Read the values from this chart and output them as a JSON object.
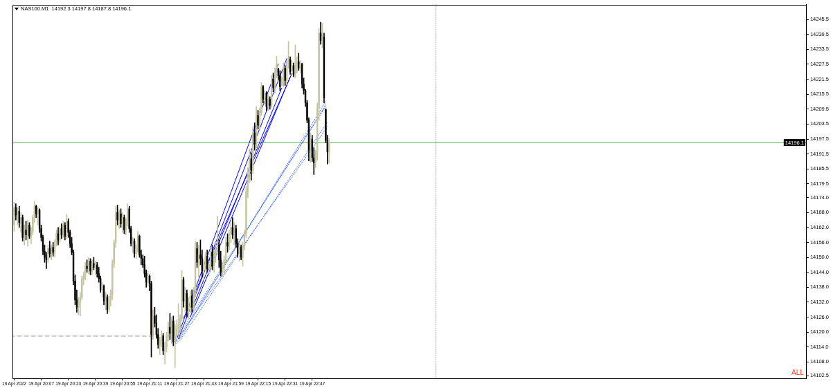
{
  "chart_data": {
    "type": "candlestick",
    "title": "NAS100.M1  14192.3 14197.8 14187.8 14196.1",
    "colors": [
      "#c4c4a0",
      "#000000",
      "#c4c4a0",
      "#000000",
      "#c4c4a0",
      "#000000",
      "#c4c4a0",
      "#000000",
      "#c4c4a0",
      "#000000",
      "#c4c4a0",
      "#c4c4a0",
      "#c4c4a0",
      "#000000",
      "#c4c4a0",
      "#000000",
      "#000000",
      "#000000",
      "#000000",
      "#000000",
      "#c4c4a0",
      "#000000",
      "#c4c4a0",
      "#000000",
      "#c4c4a0",
      "#c4c4a0",
      "#000000",
      "#c4c4a0",
      "#000000",
      "#c4c4a0",
      "#000000",
      "#c4c4a0",
      "#000000",
      "#000000",
      "#000000",
      "#000000",
      "#000000",
      "#000000",
      "#c4c4a0",
      "#c4c4a0",
      "#c4c4a0",
      "#c4c4a0",
      "#c4c4a0",
      "#000000",
      "#c4c4a0",
      "#000000",
      "#c4c4a0",
      "#000000",
      "#c4c4a0",
      "#000000",
      "#000000",
      "#000000",
      "#c4c4a0",
      "#000000",
      "#c4c4a0",
      "#000000",
      "#c4c4a0",
      "#c4c4a0",
      "#c4c4a0",
      "#c4c4a0",
      "#c4c4a0",
      "#000000",
      "#c4c4a0",
      "#000000",
      "#c4c4a0",
      "#000000",
      "#c4c4a0",
      "#c4c4a0",
      "#000000",
      "#000000",
      "#c4c4a0",
      "#000000",
      "#c4c4a0",
      "#c4c4a0",
      "#000000",
      "#000000",
      "#000000",
      "#000000",
      "#000000",
      "#c4c4a0",
      "#000000",
      "#000000",
      "#c4c4a0",
      "#000000",
      "#000000",
      "#000000",
      "#c4c4a0",
      "#c4c4a0",
      "#000000",
      "#c4c4a0",
      "#c4c4a0",
      "#c4c4a0",
      "#000000",
      "#c4c4a0",
      "#000000",
      "#c4c4a0",
      "#c4c4a0",
      "#c4c4a0",
      "#c4c4a0",
      "#c4c4a0",
      "#000000",
      "#c4c4a0",
      "#000000",
      "#c4c4a0",
      "#c4c4a0",
      "#000000",
      "#c4c4a0",
      "#c4c4a0",
      "#000000",
      "#c4c4a0",
      "#000000",
      "#000000",
      "#c4c4a0",
      "#c4c4a0",
      "#000000",
      "#c4c4a0",
      "#c4c4a0",
      "#000000",
      "#c4c4a0",
      "#c4c4a0",
      "#c4c4a0",
      "#000000",
      "#000000",
      "#c4c4a0",
      "#c4c4a0",
      "#c4c4a0",
      "#000000",
      "#c4c4a0",
      "#c4c4a0",
      "#000000",
      "#c4c4a0",
      "#000000",
      "#000000",
      "#c4c4a0",
      "#000000",
      "#c4c4a0",
      "#c4c4a0",
      "#c4c4a0",
      "#c4c4a0",
      "#c4c4a0",
      "#000000",
      "#c4c4a0",
      "#000000",
      "#c4c4a0",
      "#000000",
      "#c4c4a0",
      "#c4c4a0",
      "#000000",
      "#c4c4a0",
      "#000000",
      "#c4c4a0",
      "#000000",
      "#c4c4a0",
      "#000000",
      "#c4c4a0",
      "#c4c4a0",
      "#000000",
      "#000000",
      "#c4c4a0",
      "#c4c4a0",
      "#000000",
      "#c4c4a0",
      "#c4c4a0",
      "#000000",
      "#c4c4a0",
      "#000000",
      "#c4c4a0",
      "#c4c4a0",
      "#000000",
      "#c4c4a0",
      "#000000",
      "#000000",
      "#000000",
      "#000000",
      "#000000",
      "#c4c4a0",
      "#000000",
      "#000000",
      "#c4c4a0",
      "#c4c4a0",
      "#c4c4a0",
      "#000000",
      "#c4c4a0",
      "#000000",
      "#000000",
      "#000000",
      "#c4c4a0"
    ],
    "x": [
      "2022-04-19T19:51",
      "2022-04-19T19:52",
      "2022-04-19T19:53",
      "2022-04-19T19:54",
      "2022-04-19T19:55",
      "2022-04-19T19:56",
      "2022-04-19T19:57",
      "2022-04-19T19:58",
      "2022-04-19T19:59",
      "2022-04-19T20:00",
      "2022-04-19T20:01",
      "2022-04-19T20:02",
      "2022-04-19T20:03",
      "2022-04-19T20:04",
      "2022-04-19T20:05",
      "2022-04-19T20:06",
      "2022-04-19T20:07",
      "2022-04-19T20:08",
      "2022-04-19T20:09",
      "2022-04-19T20:10",
      "2022-04-19T20:11",
      "2022-04-19T20:12",
      "2022-04-19T20:13",
      "2022-04-19T20:14",
      "2022-04-19T20:15",
      "2022-04-19T20:16",
      "2022-04-19T20:17",
      "2022-04-19T20:18",
      "2022-04-19T20:19",
      "2022-04-19T20:20",
      "2022-04-19T20:21",
      "2022-04-19T20:22",
      "2022-04-19T20:23",
      "2022-04-19T20:24",
      "2022-04-19T20:25",
      "2022-04-19T20:26",
      "2022-04-19T20:27",
      "2022-04-19T20:28",
      "2022-04-19T20:29",
      "2022-04-19T20:30",
      "2022-04-19T20:31",
      "2022-04-19T20:32",
      "2022-04-19T20:33",
      "2022-04-19T20:34",
      "2022-04-19T20:35",
      "2022-04-19T20:36",
      "2022-04-19T20:37",
      "2022-04-19T20:38",
      "2022-04-19T20:39",
      "2022-04-19T20:40",
      "2022-04-19T20:41",
      "2022-04-19T20:42",
      "2022-04-19T20:43",
      "2022-04-19T20:44",
      "2022-04-19T20:45",
      "2022-04-19T20:46",
      "2022-04-19T20:47",
      "2022-04-19T20:48",
      "2022-04-19T20:49",
      "2022-04-19T20:50",
      "2022-04-19T20:51",
      "2022-04-19T20:52",
      "2022-04-19T20:53",
      "2022-04-19T20:54",
      "2022-04-19T20:55",
      "2022-04-19T20:56",
      "2022-04-19T20:57",
      "2022-04-19T20:58",
      "2022-04-19T20:59",
      "2022-04-19T21:00",
      "2022-04-19T21:01",
      "2022-04-19T21:02",
      "2022-04-19T21:03",
      "2022-04-19T21:04",
      "2022-04-19T21:05",
      "2022-04-19T21:06",
      "2022-04-19T21:07",
      "2022-04-19T21:08",
      "2022-04-19T21:09",
      "2022-04-19T21:10",
      "2022-04-19T21:11",
      "2022-04-19T21:12",
      "2022-04-19T21:13",
      "2022-04-19T21:14",
      "2022-04-19T21:15",
      "2022-04-19T21:16",
      "2022-04-19T21:17",
      "2022-04-19T21:18",
      "2022-04-19T21:19",
      "2022-04-19T21:20",
      "2022-04-19T21:21",
      "2022-04-19T21:22",
      "2022-04-19T21:23",
      "2022-04-19T21:24",
      "2022-04-19T21:25",
      "2022-04-19T21:26",
      "2022-04-19T21:27",
      "2022-04-19T21:28",
      "2022-04-19T21:29",
      "2022-04-19T21:30",
      "2022-04-19T21:31",
      "2022-04-19T21:32",
      "2022-04-19T21:33",
      "2022-04-19T21:34",
      "2022-04-19T21:35",
      "2022-04-19T21:36",
      "2022-04-19T21:37",
      "2022-04-19T21:38",
      "2022-04-19T21:39",
      "2022-04-19T21:40",
      "2022-04-19T21:41",
      "2022-04-19T21:42",
      "2022-04-19T21:43",
      "2022-04-19T21:44",
      "2022-04-19T21:45",
      "2022-04-19T21:46",
      "2022-04-19T21:47",
      "2022-04-19T21:48",
      "2022-04-19T21:49",
      "2022-04-19T21:50",
      "2022-04-19T21:51",
      "2022-04-19T21:52",
      "2022-04-19T21:53",
      "2022-04-19T21:54",
      "2022-04-19T21:55",
      "2022-04-19T21:56",
      "2022-04-19T21:57",
      "2022-04-19T21:58",
      "2022-04-19T21:59",
      "2022-04-19T22:00",
      "2022-04-19T22:01",
      "2022-04-19T22:02",
      "2022-04-19T22:03",
      "2022-04-19T22:04",
      "2022-04-19T22:05",
      "2022-04-19T22:06",
      "2022-04-19T22:07",
      "2022-04-19T22:08",
      "2022-04-19T22:09",
      "2022-04-19T22:10",
      "2022-04-19T22:11",
      "2022-04-19T22:12",
      "2022-04-19T22:13",
      "2022-04-19T22:14",
      "2022-04-19T22:15",
      "2022-04-19T22:16",
      "2022-04-19T22:17",
      "2022-04-19T22:18",
      "2022-04-19T22:19",
      "2022-04-19T22:20",
      "2022-04-19T22:21",
      "2022-04-19T22:22",
      "2022-04-19T22:23",
      "2022-04-19T22:24",
      "2022-04-19T22:25",
      "2022-04-19T22:26",
      "2022-04-19T22:27",
      "2022-04-19T22:28",
      "2022-04-19T22:29",
      "2022-04-19T22:30",
      "2022-04-19T22:31",
      "2022-04-19T22:32",
      "2022-04-19T22:33",
      "2022-04-19T22:34",
      "2022-04-19T22:35",
      "2022-04-19T22:36",
      "2022-04-19T22:37",
      "2022-04-19T22:38",
      "2022-04-19T22:39",
      "2022-04-19T22:40",
      "2022-04-19T22:41",
      "2022-04-19T22:42",
      "2022-04-19T22:43",
      "2022-04-19T22:44",
      "2022-04-19T22:45",
      "2022-04-19T22:46",
      "2022-04-19T22:47",
      "2022-04-19T22:48",
      "2022-04-19T22:49",
      "2022-04-19T22:50",
      "2022-04-19T22:51",
      "2022-04-19T22:52",
      "2022-04-19T22:53",
      "2022-04-19T22:54",
      "2022-04-19T22:55",
      "2022-04-19T22:56",
      "2022-04-19T22:57"
    ],
    "ohlc": [
      [
        14163,
        14172.2,
        14160.5,
        14170
      ],
      [
        14170,
        14171.5,
        14165,
        14167
      ],
      [
        14167,
        14170,
        14163,
        14168.5
      ],
      [
        14168.5,
        14170.5,
        14162,
        14164
      ],
      [
        14164,
        14168,
        14160,
        14166
      ],
      [
        14166,
        14167,
        14156.5,
        14158
      ],
      [
        14158,
        14163,
        14155,
        14161
      ],
      [
        14161,
        14164.5,
        14157,
        14159
      ],
      [
        14159,
        14165,
        14154.5,
        14163
      ],
      [
        14163,
        14164,
        14157.5,
        14158.5
      ],
      [
        14158.5,
        14162,
        14155.5,
        14160.5
      ],
      [
        14160.5,
        14167,
        14159,
        14166
      ],
      [
        14166,
        14172.5,
        14164,
        14170.5
      ],
      [
        14170.5,
        14171,
        14166,
        14167.5
      ],
      [
        14167.5,
        14170,
        14163,
        14169
      ],
      [
        14169,
        14169.5,
        14160,
        14161.5
      ],
      [
        14161.5,
        14163,
        14156.5,
        14158
      ],
      [
        14158,
        14159,
        14151,
        14152.5
      ],
      [
        14152.5,
        14155,
        14148,
        14150
      ],
      [
        14150,
        14152,
        14145.5,
        14149
      ],
      [
        14149,
        14155,
        14148,
        14153.5
      ],
      [
        14153.5,
        14156.5,
        14150,
        14151.5
      ],
      [
        14151.5,
        14155,
        14149,
        14154
      ],
      [
        14154,
        14156,
        14150.5,
        14152
      ],
      [
        14152,
        14157,
        14150,
        14156
      ],
      [
        14156,
        14161,
        14154.5,
        14159.5
      ],
      [
        14159.5,
        14162,
        14155,
        14157
      ],
      [
        14157,
        14162.5,
        14156,
        14161.5
      ],
      [
        14161.5,
        14163.5,
        14157.5,
        14159
      ],
      [
        14159,
        14164.5,
        14158,
        14163
      ],
      [
        14163,
        14164,
        14157,
        14158.5
      ],
      [
        14158.5,
        14167.3,
        14157.5,
        14164.5
      ],
      [
        14164.5,
        14165.5,
        14158,
        14160
      ],
      [
        14160,
        14161,
        14154,
        14155.5
      ],
      [
        14155.5,
        14158,
        14151,
        14152
      ],
      [
        14152,
        14153,
        14139,
        14140.5
      ],
      [
        14140.5,
        14143,
        14131,
        14133
      ],
      [
        14133,
        14137,
        14128,
        14130
      ],
      [
        14130,
        14134,
        14127,
        14132
      ],
      [
        14132,
        14136,
        14126.5,
        14134
      ],
      [
        14134,
        14142.5,
        14133,
        14141.5
      ],
      [
        14141.5,
        14144,
        14139,
        14142.5
      ],
      [
        14142.5,
        14148,
        14141,
        14146.5
      ],
      [
        14146.5,
        14149,
        14144,
        14145.5
      ],
      [
        14145.5,
        14150,
        14143.5,
        14148.5
      ],
      [
        14148.5,
        14149.5,
        14143,
        14144.5
      ],
      [
        14144.5,
        14149,
        14143,
        14147.5
      ],
      [
        14147.5,
        14150,
        14145,
        14146
      ],
      [
        14146,
        14148.5,
        14143,
        14147
      ],
      [
        14147,
        14148,
        14142,
        14143.5
      ],
      [
        14143.5,
        14146,
        14140,
        14141.5
      ],
      [
        14141.5,
        14142.5,
        14136,
        14137
      ],
      [
        14137,
        14140,
        14134,
        14138.5
      ],
      [
        14138.5,
        14139,
        14131,
        14132.5
      ],
      [
        14132.5,
        14136,
        14129,
        14134
      ],
      [
        14134,
        14135,
        14127.4,
        14129
      ],
      [
        14129,
        14134.5,
        14128,
        14133
      ],
      [
        14133,
        14137,
        14130.5,
        14135.5
      ],
      [
        14135.5,
        14149,
        14133,
        14147.5
      ],
      [
        14147.5,
        14157,
        14146,
        14156
      ],
      [
        14156,
        14170.5,
        14154,
        14168
      ],
      [
        14168,
        14171,
        14163,
        14165
      ],
      [
        14165,
        14169,
        14161.5,
        14167.5
      ],
      [
        14167.5,
        14169.5,
        14162,
        14163.5
      ],
      [
        14163.5,
        14168,
        14160,
        14166
      ],
      [
        14166,
        14167,
        14159.5,
        14161
      ],
      [
        14161,
        14165.5,
        14159,
        14164.5
      ],
      [
        14164.5,
        14171.5,
        14162.5,
        14169.5
      ],
      [
        14169.5,
        14170.5,
        14160,
        14161.5
      ],
      [
        14161.5,
        14162.5,
        14154.5,
        14155.5
      ],
      [
        14155.5,
        14158,
        14152,
        14156.5
      ],
      [
        14156.5,
        14157.5,
        14150,
        14151.5
      ],
      [
        14151.5,
        14155,
        14149.5,
        14153.5
      ],
      [
        14153.5,
        14160.5,
        14152,
        14158.5
      ],
      [
        14158.5,
        14159,
        14150,
        14151
      ],
      [
        14151,
        14153,
        14147,
        14149.5
      ],
      [
        14149.5,
        14151,
        14146,
        14147
      ],
      [
        14147,
        14150.5,
        14142,
        14143.5
      ],
      [
        14143.5,
        14145,
        14138,
        14140
      ],
      [
        14140,
        14144.5,
        14138.5,
        14142.5
      ],
      [
        14142.5,
        14143,
        14136.5,
        14139.5
      ],
      [
        14139.5,
        14140.5,
        14110,
        14119
      ],
      [
        14119,
        14129,
        14117,
        14126.5
      ],
      [
        14126.5,
        14130,
        14122,
        14123.5
      ],
      [
        14123.5,
        14127,
        14117.5,
        14119
      ],
      [
        14119,
        14121.5,
        14113.5,
        14115
      ],
      [
        14115,
        14118,
        14111,
        14116.5
      ],
      [
        14116.5,
        14120.5,
        14114,
        14118.5
      ],
      [
        14118.5,
        14119.5,
        14111,
        14112.5
      ],
      [
        14112.5,
        14116,
        14107.2,
        14114
      ],
      [
        14114,
        14120,
        14112,
        14118.5
      ],
      [
        14118.5,
        14124,
        14116.5,
        14122
      ],
      [
        14122,
        14127.5,
        14117,
        14119.5
      ],
      [
        14119.5,
        14126,
        14115.5,
        14124.5
      ],
      [
        14124.5,
        14126.5,
        14114.5,
        14116
      ],
      [
        14116,
        14123,
        14105.8,
        14118.5
      ],
      [
        14118.5,
        14125,
        14116.5,
        14121.5
      ],
      [
        14121.5,
        14131.5,
        14119,
        14123
      ],
      [
        14123,
        14127,
        14120,
        14125.5
      ],
      [
        14125.5,
        14144.7,
        14124.5,
        14141
      ],
      [
        14141,
        14142,
        14130,
        14132.5
      ],
      [
        14132.5,
        14138,
        14128,
        14135.5
      ],
      [
        14135.5,
        14137,
        14126,
        14128.5
      ],
      [
        14128.5,
        14134,
        14125.5,
        14131
      ],
      [
        14131,
        14136.5,
        14127.5,
        14134.5
      ],
      [
        14134.5,
        14137,
        14128,
        14130
      ],
      [
        14130,
        14138,
        14128.5,
        14136
      ],
      [
        14136,
        14156.5,
        14134,
        14153.5
      ],
      [
        14153.5,
        14156,
        14146,
        14148
      ],
      [
        14148,
        14155,
        14142,
        14151
      ],
      [
        14151,
        14157,
        14147,
        14149.5
      ],
      [
        14149.5,
        14153,
        14142,
        14144.5
      ],
      [
        14144.5,
        14149,
        14141,
        14147.5
      ],
      [
        14147.5,
        14152,
        14145,
        14150.5
      ],
      [
        14150.5,
        14153,
        14144,
        14145.5
      ],
      [
        14145.5,
        14148.5,
        14142.5,
        14147
      ],
      [
        14147,
        14154,
        14144,
        14152
      ],
      [
        14152,
        14155,
        14145,
        14146.5
      ],
      [
        14146.5,
        14153,
        14144,
        14150.5
      ],
      [
        14150.5,
        14156,
        14148,
        14153.5
      ],
      [
        14153.5,
        14166.5,
        14151,
        14155
      ],
      [
        14155,
        14157,
        14146,
        14149
      ],
      [
        14149,
        14152.5,
        14142.5,
        14144
      ],
      [
        14144,
        14148,
        14142,
        14146
      ],
      [
        14146,
        14150.5,
        14143.5,
        14149
      ],
      [
        14149,
        14158,
        14147.5,
        14156
      ],
      [
        14156,
        14159.5,
        14152,
        14154.5
      ],
      [
        14154.5,
        14161,
        14153,
        14159.5
      ],
      [
        14159.5,
        14164.5,
        14156,
        14162
      ],
      [
        14162,
        14166,
        14157.5,
        14159
      ],
      [
        14159,
        14164,
        14155,
        14161.5
      ],
      [
        14161.5,
        14163,
        14154,
        14155.5
      ],
      [
        14155.5,
        14157.5,
        14150,
        14151.5
      ],
      [
        14151.5,
        14156,
        14148.5,
        14154
      ],
      [
        14154,
        14155,
        14149,
        14150
      ],
      [
        14150,
        14156,
        14146.5,
        14154.5
      ],
      [
        14154.5,
        14161,
        14153,
        14159.5
      ],
      [
        14159.5,
        14178.5,
        14158,
        14176.5
      ],
      [
        14176.5,
        14186,
        14174,
        14184.5
      ],
      [
        14184.5,
        14193.5,
        14180,
        14189.5
      ],
      [
        14189.5,
        14192,
        14181,
        14185
      ],
      [
        14185,
        14202.5,
        14183.5,
        14200
      ],
      [
        14200,
        14204,
        14193,
        14195.5
      ],
      [
        14195.5,
        14210.5,
        14194,
        14207
      ],
      [
        14207,
        14209,
        14201.5,
        14203
      ],
      [
        14203,
        14210,
        14201,
        14208
      ],
      [
        14208,
        14220.2,
        14207,
        14218.5
      ],
      [
        14218.5,
        14219,
        14212,
        14213.5
      ],
      [
        14213.5,
        14217,
        14211.5,
        14216
      ],
      [
        14216,
        14216.5,
        14209,
        14210.5
      ],
      [
        14210.5,
        14215.5,
        14209,
        14213.5
      ],
      [
        14213.5,
        14214.5,
        14209.5,
        14211
      ],
      [
        14211,
        14223,
        14210,
        14221.5
      ],
      [
        14221.5,
        14224,
        14216.5,
        14218
      ],
      [
        14218,
        14226,
        14216,
        14224.5
      ],
      [
        14224.5,
        14230.7,
        14222,
        14227.5
      ],
      [
        14225.5,
        14226,
        14221.5,
        14223
      ],
      [
        14223,
        14225,
        14217,
        14218.5
      ],
      [
        14219,
        14222.5,
        14219,
        14220.5
      ],
      [
        14220.5,
        14228,
        14218.5,
        14226
      ],
      [
        14226,
        14227,
        14219,
        14221
      ],
      [
        14221,
        14228.8,
        14219.5,
        14228.5
      ],
      [
        14228.5,
        14236.7,
        14226,
        14229.5
      ],
      [
        14229.5,
        14230.5,
        14223.5,
        14224.5
      ],
      [
        14225,
        14229,
        14224.8,
        14227
      ],
      [
        14227,
        14228,
        14222.5,
        14223.5
      ],
      [
        14223.5,
        14235.3,
        14222,
        14226.5
      ],
      [
        14226.5,
        14230.5,
        14224,
        14228.5
      ],
      [
        14228.5,
        14232,
        14225,
        14226
      ],
      [
        14226,
        14229,
        14224,
        14227.5
      ],
      [
        14227.5,
        14228,
        14218,
        14219.5
      ],
      [
        14219.5,
        14222,
        14215.5,
        14217
      ],
      [
        14217,
        14217.5,
        14210.5,
        14212
      ],
      [
        14212,
        14213,
        14204,
        14205
      ],
      [
        14205,
        14206,
        14188.7,
        14193
      ],
      [
        14193,
        14200,
        14188,
        14197.5
      ],
      [
        14197.5,
        14199,
        14188.5,
        14190
      ],
      [
        14190,
        14194,
        14183.2,
        14188
      ],
      [
        14188,
        14193,
        14186,
        14191.5
      ],
      [
        14191.5,
        14212,
        14189,
        14210
      ],
      [
        14210,
        14242,
        14205,
        14240
      ],
      [
        14240,
        14244.4,
        14235.5,
        14237
      ],
      [
        14237,
        14244,
        14234,
        14238.5
      ],
      [
        14238.5,
        14240,
        14212,
        14214
      ],
      [
        14209.5,
        14209.5,
        14196,
        14197
      ],
      [
        14197,
        14199,
        14187.5,
        14192.3
      ],
      [
        14192.3,
        14197.8,
        14187.8,
        14196.1
      ]
    ],
    "series": [
      {
        "type": "line",
        "color": "#0000ff",
        "line_style": "solid",
        "x": [
          "2022-04-19T21:26",
          "2022-04-19T22:27"
        ],
        "values": [
          14115.4,
          14227.6
        ]
      },
      {
        "type": "line",
        "color": "#0000ff",
        "line_style": "solid",
        "x": [
          "2022-04-19T21:28",
          "2022-04-19T22:32"
        ],
        "values": [
          14117.3,
          14229.8
        ]
      },
      {
        "type": "line",
        "color": "#0000ff",
        "line_style": "solid",
        "x": [
          "2022-04-19T21:31",
          "2022-04-19T22:35"
        ],
        "values": [
          14125.5,
          14223.8
        ]
      },
      {
        "type": "line",
        "color": "#0000ff",
        "line_style": "solid",
        "x": [
          "2022-04-19T21:35",
          "2022-04-19T22:34"
        ],
        "values": [
          14126.1,
          14222.4
        ]
      },
      {
        "type": "line",
        "color": "#0000ff",
        "line_style": "solid",
        "x": [
          "2022-04-19T21:37",
          "2022-04-19T22:29"
        ],
        "values": [
          14131,
          14218
        ]
      },
      {
        "type": "line",
        "color": "#3b6cff",
        "line_style": "dotted",
        "x": [
          "2022-04-19T21:27",
          "2022-04-19T22:55"
        ],
        "values": [
          14115.4,
          14212.5
        ]
      },
      {
        "type": "line",
        "color": "#3b6cff",
        "line_style": "dotted",
        "x": [
          "2022-04-19T21:28",
          "2022-04-19T22:55"
        ],
        "values": [
          14117.3,
          14211.2
        ]
      },
      {
        "type": "line",
        "color": "#3b6cff",
        "line_style": "dotted",
        "x": [
          "2022-04-19T21:29",
          "2022-04-19T22:56"
        ],
        "values": [
          14116.8,
          14204.3
        ]
      },
      {
        "type": "line",
        "color": "#3b6cff",
        "line_style": "dotted",
        "x": [
          "2022-04-19T21:32",
          "2022-04-19T22:55"
        ],
        "values": [
          14122.8,
          14210.6
        ]
      },
      {
        "type": "line",
        "color": "#3b6cff",
        "line_style": "dotted",
        "x": [
          "2022-04-19T21:30",
          "2022-04-19T22:56"
        ],
        "values": [
          14120,
          14202.4
        ]
      },
      {
        "type": "line",
        "color": "#9a9a88",
        "line_style": "dashed",
        "x": [
          "2022-04-19T19:50",
          "2022-04-19T21:16"
        ],
        "values": [
          14118.4,
          14118.4
        ]
      }
    ],
    "ref_lines": [
      {
        "axis": "y",
        "value": 14196.1,
        "label": "14196.1",
        "color": "#5cb85c",
        "line_style": "solid"
      },
      {
        "axis": "x",
        "value": "2022-04-20T00:00",
        "color": "#556b2f",
        "line_style": "dotted"
      }
    ],
    "annotations": [
      "ALL"
    ],
    "xlim": [
      "2022-04-19T19:50",
      "2022-04-20T03:39"
    ],
    "xticks": [
      {
        "value": "2022-04-19T19:51",
        "label": "19 Apr 2022"
      },
      {
        "value": "2022-04-19T20:07",
        "label": "19 Apr 20:07"
      },
      {
        "value": "2022-04-19T20:23",
        "label": "19 Apr 20:23"
      },
      {
        "value": "2022-04-19T20:39",
        "label": "19 Apr 20:39"
      },
      {
        "value": "2022-04-19T20:55",
        "label": "19 Apr 20:55"
      },
      {
        "value": "2022-04-19T21:11",
        "label": "19 Apr 21:11"
      },
      {
        "value": "2022-04-19T21:27",
        "label": "19 Apr 21:27"
      },
      {
        "value": "2022-04-19T21:43",
        "label": "19 Apr 21:43"
      },
      {
        "value": "2022-04-19T21:59",
        "label": "19 Apr 21:59"
      },
      {
        "value": "2022-04-19T22:15",
        "label": "19 Apr 22:15"
      },
      {
        "value": "2022-04-19T22:31",
        "label": "19 Apr 22:31"
      },
      {
        "value": "2022-04-19T22:47",
        "label": "19 Apr 22:47"
      }
    ],
    "ylim": [
      14101.4,
      14251.5
    ],
    "yticks": [
      14102.5,
      {
        "value": 14108,
        "label": "14108.0"
      },
      {
        "value": 14114,
        "label": "14114.0"
      },
      {
        "value": 14120,
        "label": "14120.0"
      },
      {
        "value": 14126,
        "label": "14126.0"
      },
      {
        "value": 14132,
        "label": "14132.0"
      },
      {
        "value": 14138,
        "label": "14138.0"
      },
      {
        "value": 14144,
        "label": "14144.0"
      },
      {
        "value": 14150,
        "label": "14150.0"
      },
      {
        "value": 14156,
        "label": "14156.0"
      },
      {
        "value": 14162,
        "label": "14162.0"
      },
      {
        "value": 14168,
        "label": "14168.0"
      },
      {
        "value": 14174,
        "label": "14174.0"
      },
      14179.5,
      14185.5,
      14191.5,
      14197.5,
      14203.5,
      14209.5,
      14215.5,
      14221.5,
      14227.5,
      14233.5,
      14239.5,
      14245.5
    ]
  }
}
